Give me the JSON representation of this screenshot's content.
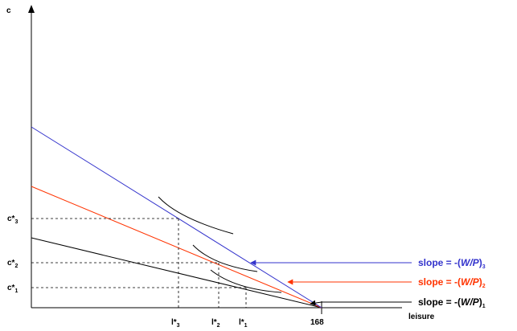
{
  "axes": {
    "y_label": "c",
    "x_label": "leisure",
    "x_max_label": "168"
  },
  "y_marks": [
    {
      "base": "c*",
      "sub": "3"
    },
    {
      "base": "c*",
      "sub": "2"
    },
    {
      "base": "c*",
      "sub": "1"
    }
  ],
  "x_marks": [
    {
      "base": "l*",
      "sub": "3"
    },
    {
      "base": "l*",
      "sub": "2"
    },
    {
      "base": "l*",
      "sub": "1"
    }
  ],
  "budget_lines": [
    {
      "slope_prefix": "slope = -(",
      "slope_var": "W/P",
      "slope_suffix": ")",
      "sub": "3",
      "color": "#3333cc"
    },
    {
      "slope_prefix": "slope = -(",
      "slope_var": "W/P",
      "slope_suffix": ")",
      "sub": "2",
      "color": "#ff3300"
    },
    {
      "slope_prefix": "slope = -(",
      "slope_var": "W/P",
      "slope_suffix": ")",
      "sub": "1",
      "color": "#000000"
    }
  ]
}
